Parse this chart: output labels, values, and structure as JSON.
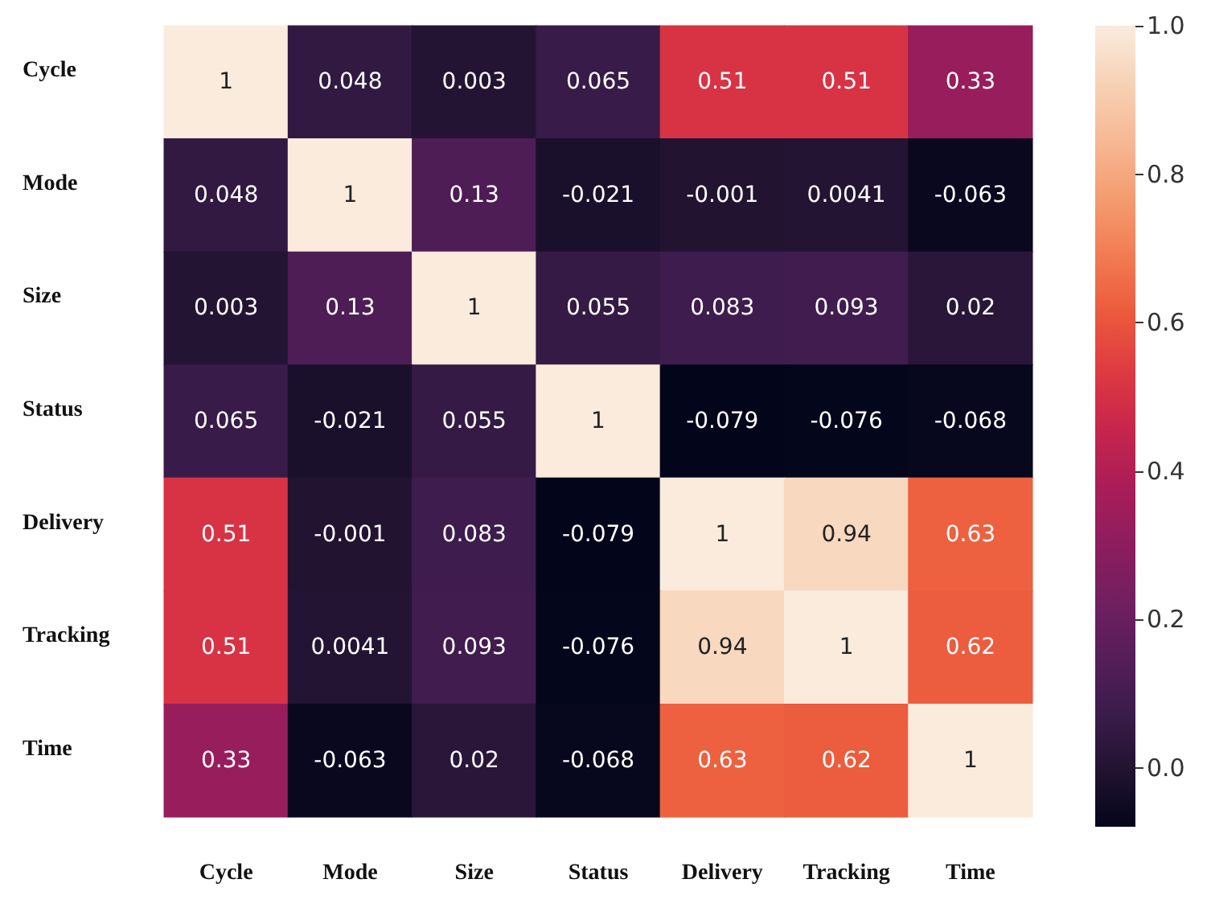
{
  "chart_data": {
    "type": "heatmap",
    "categories": [
      "Cycle",
      "Mode",
      "Size",
      "Status",
      "Delivery",
      "Tracking",
      "Time"
    ],
    "y_categories": [
      "Cycle",
      "Mode",
      "Size",
      "Status",
      "Delivery",
      "Tracking",
      "Time"
    ],
    "cells": [
      [
        1,
        0.048,
        0.003,
        0.065,
        0.51,
        0.51,
        0.33
      ],
      [
        0.048,
        1,
        0.13,
        -0.021,
        -0.001,
        0.0041,
        -0.063
      ],
      [
        0.003,
        0.13,
        1,
        0.055,
        0.083,
        0.093,
        0.02
      ],
      [
        0.065,
        -0.021,
        0.055,
        1,
        -0.079,
        -0.076,
        -0.068
      ],
      [
        0.51,
        -0.001,
        0.083,
        -0.079,
        1,
        0.94,
        0.63
      ],
      [
        0.51,
        0.0041,
        0.093,
        -0.076,
        0.94,
        1,
        0.62
      ],
      [
        0.33,
        -0.063,
        0.02,
        -0.068,
        0.63,
        0.62,
        1
      ]
    ],
    "clim": [
      -0.079,
      1.0
    ],
    "cticks": [
      {
        "value": 0,
        "label": "0.0"
      },
      {
        "value": 0.2,
        "label": "0.2"
      },
      {
        "value": 0.4,
        "label": "0.4"
      },
      {
        "value": 0.6,
        "label": "0.6"
      },
      {
        "value": 0.8,
        "label": "0.8"
      },
      {
        "value": 1,
        "label": "1.0"
      }
    ],
    "data_labels": true
  }
}
